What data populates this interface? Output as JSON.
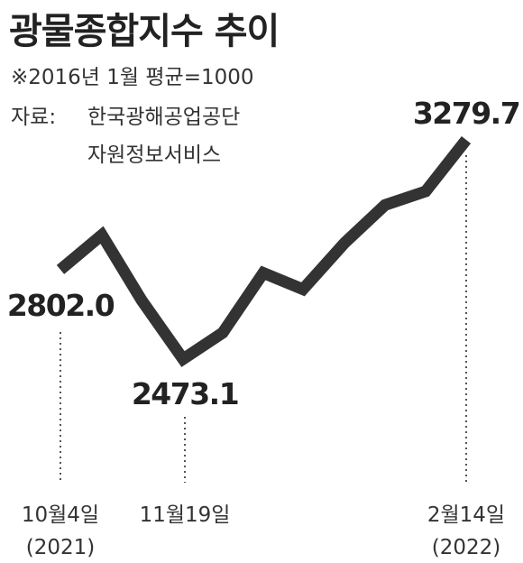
{
  "title": "광물종합지수 추이",
  "note": "※2016년 1월 평균=1000",
  "source": {
    "label": "자료:",
    "lines": [
      "한국광해공업공단",
      "자원정보서비스"
    ]
  },
  "colors": {
    "line": "#333333",
    "text": "#222222",
    "guide": "#555555"
  },
  "chart_data": {
    "type": "line",
    "title": "광물종합지수 추이",
    "xlabel": "",
    "ylabel": "",
    "grid": false,
    "x_tick_labels": [
      {
        "date": "10월4일",
        "year": "(2021)"
      },
      {
        "date": "11월19일",
        "year": ""
      },
      {
        "date": "2월14일",
        "year": "(2022)"
      }
    ],
    "y": [
      2802.0,
      2930,
      2690,
      2473.1,
      2570,
      2790,
      2730,
      2900,
      3040,
      3090,
      3279.7
    ],
    "ylim": [
      2200,
      3350
    ],
    "labeled_points": [
      {
        "index": 0,
        "label": "2802.0",
        "x_tick": 0
      },
      {
        "index": 3,
        "label": "2473.1",
        "x_tick": 1
      },
      {
        "index": 10,
        "label": "3279.7",
        "x_tick": 2
      }
    ]
  }
}
